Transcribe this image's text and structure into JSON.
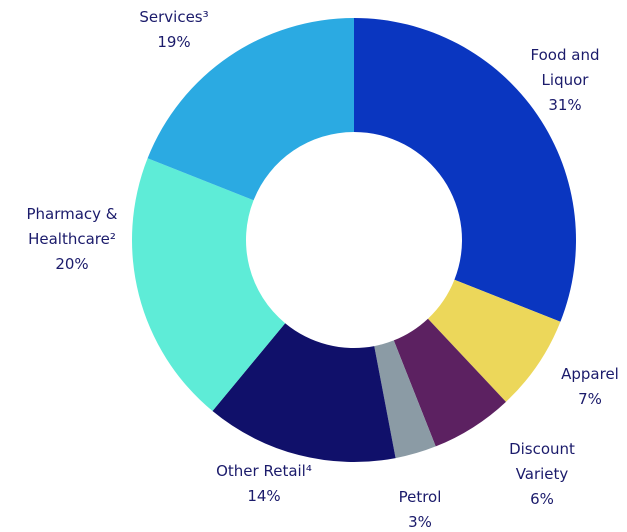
{
  "chart_data": {
    "type": "donut",
    "categories": [
      "Food and Liquor",
      "Apparel",
      "Discount Variety",
      "Petrol",
      "Other Retail⁴",
      "Pharmacy & Healthcare²",
      "Services³"
    ],
    "values": [
      31,
      7,
      6,
      3,
      14,
      20,
      19
    ],
    "value_labels": [
      "31%",
      "7%",
      "6%",
      "3%",
      "14%",
      "20%",
      "19%"
    ],
    "colors": [
      "#0a36c0",
      "#ecd75a",
      "#5c2161",
      "#8b9ba5",
      "#10106a",
      "#5eecd7",
      "#2baae2"
    ]
  }
}
